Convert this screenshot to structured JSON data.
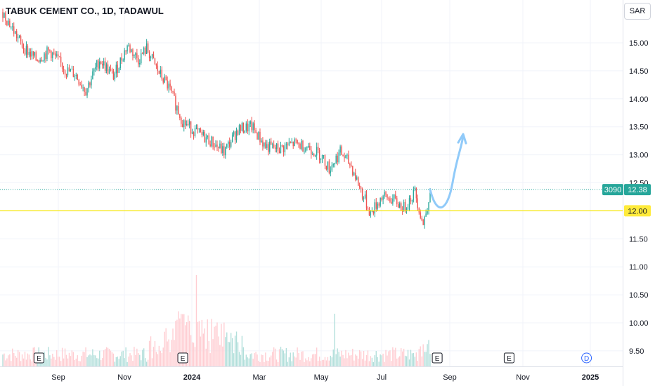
{
  "header": {
    "title": "TABUK CEMENT CO., 1D, TADAWUL",
    "currency": "SAR"
  },
  "colors": {
    "up": "#26a69a",
    "down": "#ef5350",
    "level_line": "#f7e600",
    "level_label_bg": "#ffeb3b",
    "price_line": "#26a69a",
    "arrow": "#90caf9",
    "grid": "#f0f3fa"
  },
  "price_labels": {
    "countdown": "3090",
    "last_price": "12.38",
    "level_price": "12.00"
  },
  "event_markers": [
    {
      "label": "E",
      "x": 18
    },
    {
      "label": "E",
      "x": 122
    },
    {
      "label": "E",
      "x": 306
    },
    {
      "label": "E",
      "x": 358
    },
    {
      "label": "D",
      "x": 414
    },
    {
      "label": "E",
      "x": 476
    }
  ],
  "chart_data": {
    "type": "candlestick",
    "x_ticks": [
      "Sep",
      "Nov",
      "2024",
      "Mar",
      "May",
      "Jul",
      "Sep",
      "Nov",
      "2025"
    ],
    "y_ticks": [
      "9.50",
      "10.00",
      "10.50",
      "11.00",
      "11.50",
      "12.00",
      "12.50",
      "13.00",
      "13.50",
      "14.00",
      "14.50",
      "15.00"
    ],
    "ylim": [
      9.2,
      15.7
    ],
    "last_price": 12.38,
    "horizontal_level": 12.0,
    "projection": "upward arrow toward approx 13.25",
    "price_series": [
      {
        "bar": 0,
        "close": 15.55
      },
      {
        "bar": 14,
        "close": 14.95
      },
      {
        "bar": 24,
        "close": 14.7
      },
      {
        "bar": 34,
        "close": 14.85
      },
      {
        "bar": 46,
        "close": 14.5
      },
      {
        "bar": 52,
        "close": 14.45
      },
      {
        "bar": 60,
        "close": 14.15
      },
      {
        "bar": 70,
        "close": 14.7
      },
      {
        "bar": 80,
        "close": 14.4
      },
      {
        "bar": 90,
        "close": 14.95
      },
      {
        "bar": 98,
        "close": 14.7
      },
      {
        "bar": 104,
        "close": 14.9
      },
      {
        "bar": 112,
        "close": 14.5
      },
      {
        "bar": 120,
        "close": 14.2
      },
      {
        "bar": 130,
        "close": 13.6
      },
      {
        "bar": 140,
        "close": 13.4
      },
      {
        "bar": 150,
        "close": 13.25
      },
      {
        "bar": 160,
        "close": 13.05
      },
      {
        "bar": 170,
        "close": 13.45
      },
      {
        "bar": 180,
        "close": 13.5
      },
      {
        "bar": 190,
        "close": 13.15
      },
      {
        "bar": 200,
        "close": 13.1
      },
      {
        "bar": 210,
        "close": 13.2
      },
      {
        "bar": 220,
        "close": 13.15
      },
      {
        "bar": 230,
        "close": 13.0
      },
      {
        "bar": 236,
        "close": 12.75
      },
      {
        "bar": 244,
        "close": 13.05
      },
      {
        "bar": 252,
        "close": 12.8
      },
      {
        "bar": 260,
        "close": 12.3
      },
      {
        "bar": 266,
        "close": 11.95
      },
      {
        "bar": 274,
        "close": 12.25
      },
      {
        "bar": 282,
        "close": 12.2
      },
      {
        "bar": 290,
        "close": 12.05
      },
      {
        "bar": 298,
        "close": 12.35
      },
      {
        "bar": 304,
        "close": 11.75
      },
      {
        "bar": 307,
        "close": 12.1
      },
      {
        "bar": 309,
        "close": 12.38
      }
    ],
    "volume_peak_bar": 140
  },
  "axis_label": "x_axis"
}
